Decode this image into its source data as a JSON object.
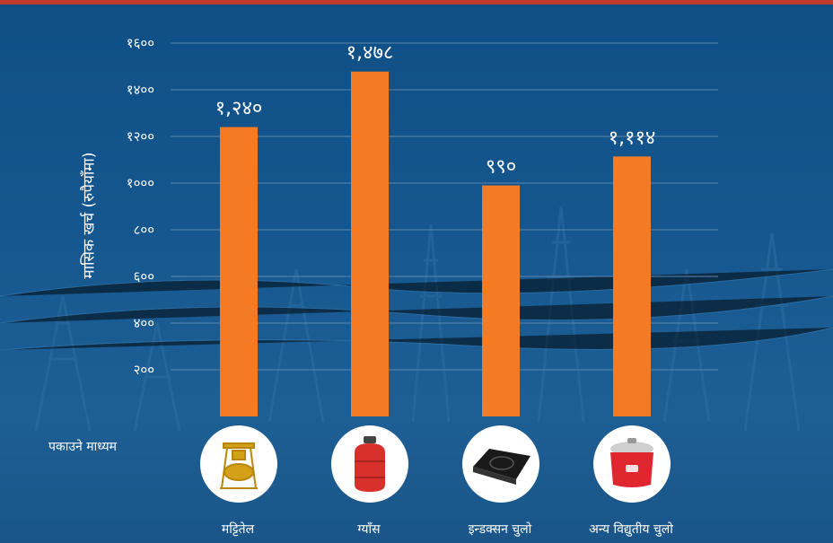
{
  "chart_data": {
    "type": "bar",
    "categories": [
      "मट्टितेल",
      "ग्याँस",
      "इन्डक्सन चुलो",
      "अन्य विद्युतीय चुलो"
    ],
    "values": [
      1240,
      1478,
      990,
      1114
    ],
    "value_labels": [
      "१,२४०",
      "१,४७८",
      "९९०",
      "१,११४"
    ],
    "ylabel": "मासिक खर्च (रुपैयाँमा)",
    "row_label": "पकाउने माध्यम",
    "ylim": [
      0,
      1600
    ],
    "yticks": [
      200,
      400,
      600,
      800,
      1000,
      1200,
      1400,
      1600
    ],
    "ytick_labels": [
      "२००",
      "४००",
      "६००",
      "८००",
      "१०००",
      "१२००",
      "१४००",
      "१६००"
    ],
    "grid": true,
    "bar_color": "#f47b24",
    "icons": [
      "kerosene-stove-icon",
      "gas-cylinder-icon",
      "induction-cooktop-icon",
      "rice-cooker-icon"
    ]
  },
  "colors": {
    "background": "#15568e",
    "top_strip": "#c0392b",
    "grid": "#5c86ad",
    "text": "#ffffff"
  }
}
